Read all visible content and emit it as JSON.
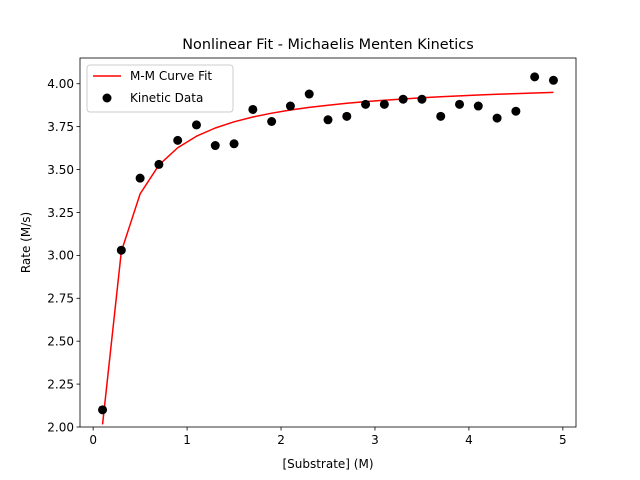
{
  "chart_data": {
    "type": "scatter",
    "title": "Nonlinear Fit - Michaelis Menten Kinetics",
    "xlabel": "[Substrate] (M)",
    "ylabel": "Rate (M/s)",
    "xlim": [
      -0.14,
      5.14
    ],
    "ylim": [
      2.0,
      4.15
    ],
    "x_ticks": [
      0,
      1,
      2,
      3,
      4,
      5
    ],
    "x_tick_labels": [
      "0",
      "1",
      "2",
      "3",
      "4",
      "5"
    ],
    "y_ticks": [
      2.0,
      2.25,
      2.5,
      2.75,
      3.0,
      3.25,
      3.5,
      3.75,
      4.0
    ],
    "y_tick_labels": [
      "2.00",
      "2.25",
      "2.50",
      "2.75",
      "3.00",
      "3.25",
      "3.50",
      "3.75",
      "4.00"
    ],
    "grid": false,
    "legend_position": "upper-left",
    "series": [
      {
        "name": "M-M Curve Fit",
        "kind": "line",
        "color": "#ff0000",
        "vmax": 4.03,
        "km": 0.1,
        "x": [
          0.1,
          0.3,
          0.5,
          0.7,
          0.9,
          1.1,
          1.3,
          1.5,
          1.7,
          1.9,
          2.1,
          2.3,
          2.5,
          2.7,
          2.9,
          3.1,
          3.3,
          3.5,
          3.7,
          3.9,
          4.1,
          4.3,
          4.5,
          4.7,
          4.9
        ]
      },
      {
        "name": "Kinetic Data",
        "kind": "scatter",
        "color": "#000000",
        "x": [
          0.1,
          0.3,
          0.5,
          0.7,
          0.9,
          1.1,
          1.3,
          1.5,
          1.7,
          1.9,
          2.1,
          2.3,
          2.5,
          2.7,
          2.9,
          3.1,
          3.3,
          3.5,
          3.7,
          3.9,
          4.1,
          4.3,
          4.5,
          4.7,
          4.9
        ],
        "y": [
          2.1,
          3.03,
          3.45,
          3.53,
          3.67,
          3.76,
          3.64,
          3.65,
          3.85,
          3.78,
          3.87,
          3.94,
          3.79,
          3.81,
          3.88,
          3.88,
          3.91,
          3.91,
          3.81,
          3.88,
          3.87,
          3.8,
          3.84,
          4.04,
          4.02
        ]
      }
    ]
  }
}
